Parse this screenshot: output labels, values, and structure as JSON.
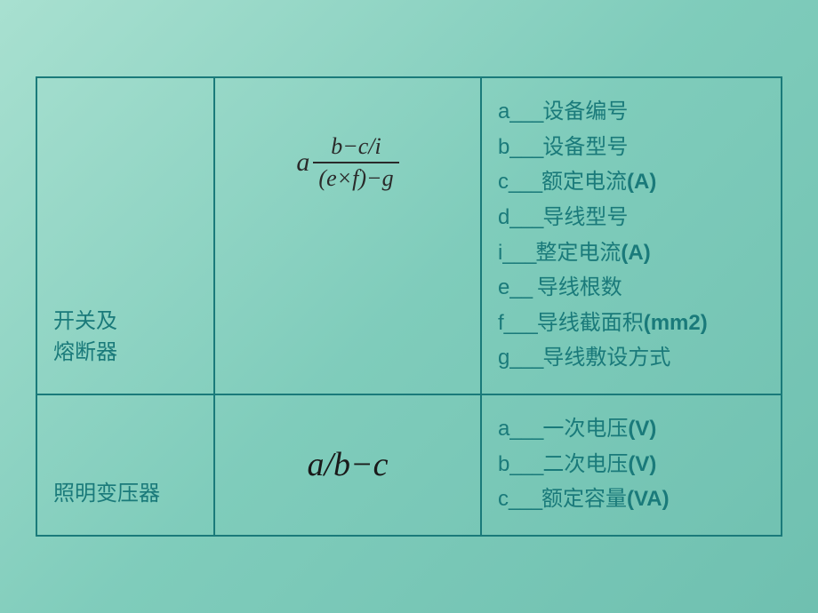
{
  "table": {
    "border_color": "#1a7a7a",
    "text_color": "#1a7a7a",
    "formula_color": "#2a2a2a",
    "background_gradient": [
      "#a8e0d0",
      "#7fccbb",
      "#6fc0b0"
    ],
    "label_fontsize": 24,
    "formula_fontsize": 30,
    "formula2_fontsize": 38,
    "desc_fontsize": 24,
    "rows": [
      {
        "label_lines": [
          "开关及",
          "熔断器"
        ],
        "formula": {
          "type": "fraction_with_prefix",
          "prefix": "a",
          "numerator": "b−c/i",
          "denominator": "(e×f)−g"
        },
        "descriptions": [
          {
            "key": "a",
            "sep": "___",
            "text": "设备编号",
            "unit": ""
          },
          {
            "key": "b",
            "sep": "___",
            "text": "设备型号",
            "unit": ""
          },
          {
            "key": "c",
            "sep": "___",
            "text": "额定电流",
            "unit": "(A)"
          },
          {
            "key": "d",
            "sep": "___",
            "text": "导线型号",
            "unit": ""
          },
          {
            "key": "i",
            "sep": "___",
            "text": "整定电流",
            "unit": "(A)"
          },
          {
            "key": "e",
            "sep": "__ ",
            "text": " 导线根数",
            "unit": ""
          },
          {
            "key": "f",
            "sep": "___",
            "text": "导线截面积",
            "unit": "(mm2)"
          },
          {
            "key": "g",
            "sep": "___",
            "text": "导线敷设方式",
            "unit": ""
          }
        ]
      },
      {
        "label_lines": [
          "照明变压器"
        ],
        "formula": {
          "type": "inline",
          "text": "a/b−c"
        },
        "descriptions": [
          {
            "key": "a",
            "sep": "___",
            "text": "一次电压",
            "unit": "(V)"
          },
          {
            "key": "b",
            "sep": "___",
            "text": "二次电压",
            "unit": "(V)"
          },
          {
            "key": "c",
            "sep": "___",
            "text": "额定容量",
            "unit": "(VA)"
          }
        ]
      }
    ]
  }
}
